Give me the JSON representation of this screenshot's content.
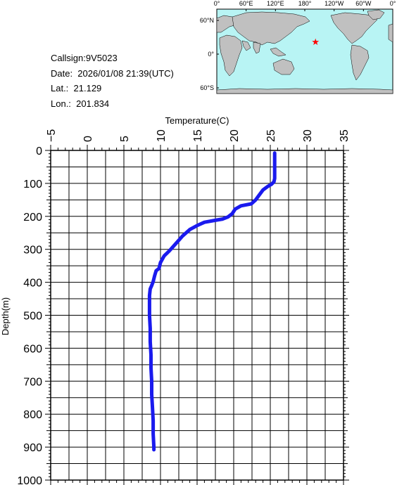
{
  "info": {
    "callsign": "Callsign:9V5023",
    "date": "Date:  2026/01/08 21:39(UTC)",
    "lat": "Lat.:  21.129",
    "lon": "Lon.:  201.834"
  },
  "map": {
    "top_labels": [
      "0°",
      "60°E",
      "120°E",
      "180°",
      "120°W",
      "60°W",
      "0°"
    ],
    "left_labels": [
      "60°N",
      "0°",
      "60°S"
    ],
    "ocean_color": "#b8f4f4",
    "land_color": "#c0c0c0",
    "marker_color": "#ff0000",
    "marker": {
      "lon": 201.834,
      "lat": 21.129
    }
  },
  "chart_data": {
    "type": "line",
    "xlabel": "Temperature(C)",
    "ylabel": "Depth(m)",
    "xlim": [
      -5,
      35
    ],
    "ylim": [
      0,
      1000
    ],
    "y_inverted": true,
    "xticks": [
      "−5",
      "0",
      "5",
      "10",
      "15",
      "20",
      "25",
      "30",
      "35"
    ],
    "yticks": [
      "0",
      "100",
      "200",
      "300",
      "400",
      "500",
      "600",
      "700",
      "800",
      "900",
      "1000"
    ],
    "grid": true,
    "series": [
      {
        "color": "#1a1aee",
        "points": [
          [
            25.6,
            8
          ],
          [
            25.6,
            30
          ],
          [
            25.6,
            60
          ],
          [
            25.6,
            85
          ],
          [
            25.5,
            95
          ],
          [
            25.2,
            102
          ],
          [
            24.6,
            110
          ],
          [
            24.0,
            120
          ],
          [
            23.5,
            135
          ],
          [
            23.0,
            150
          ],
          [
            22.4,
            162
          ],
          [
            21.0,
            168
          ],
          [
            20.2,
            178
          ],
          [
            19.8,
            192
          ],
          [
            19.2,
            202
          ],
          [
            18.5,
            208
          ],
          [
            17.5,
            212
          ],
          [
            16.0,
            218
          ],
          [
            15.0,
            228
          ],
          [
            14.0,
            240
          ],
          [
            13.0,
            260
          ],
          [
            12.0,
            285
          ],
          [
            11.2,
            305
          ],
          [
            10.5,
            320
          ],
          [
            10.0,
            340
          ],
          [
            9.8,
            358
          ],
          [
            9.4,
            365
          ],
          [
            9.2,
            380
          ],
          [
            9.0,
            398
          ],
          [
            8.8,
            410
          ],
          [
            8.6,
            420
          ],
          [
            8.5,
            440
          ],
          [
            8.5,
            470
          ],
          [
            8.5,
            500
          ],
          [
            8.6,
            540
          ],
          [
            8.6,
            580
          ],
          [
            8.7,
            620
          ],
          [
            8.7,
            660
          ],
          [
            8.8,
            700
          ],
          [
            8.8,
            740
          ],
          [
            8.9,
            780
          ],
          [
            9.0,
            820
          ],
          [
            9.0,
            860
          ],
          [
            9.1,
            900
          ],
          [
            9.1,
            908
          ]
        ]
      }
    ]
  }
}
